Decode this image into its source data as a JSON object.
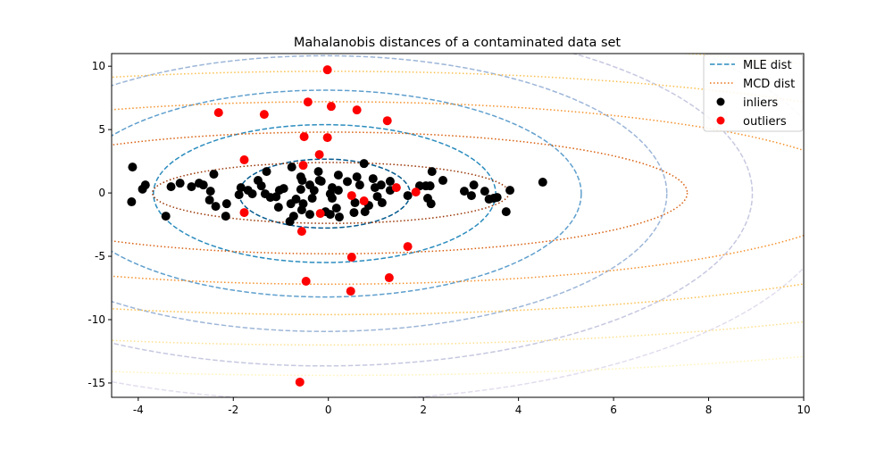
{
  "chart_data": {
    "type": "scatter",
    "title": "Mahalanobis distances of a contaminated data set",
    "xlabel": "",
    "ylabel": "",
    "xlim": [
      -4.56,
      10
    ],
    "ylim": [
      -16.13,
      11
    ],
    "xticks": [
      -4,
      -2,
      0,
      2,
      4,
      6,
      8,
      10
    ],
    "yticks": [
      -15,
      -10,
      -5,
      0,
      5,
      10
    ],
    "grid": false,
    "legend": {
      "placement": "top-right",
      "entries": [
        {
          "label": "MLE dist",
          "style": "dashed",
          "color": "#2b8cbe"
        },
        {
          "label": "MCD dist",
          "style": "dotted",
          "color": "#ec7014"
        },
        {
          "label": "inliers",
          "style": "marker",
          "color": "#000000"
        },
        {
          "label": "outliers",
          "style": "marker",
          "color": "#ff0000"
        }
      ]
    },
    "contours": [
      {
        "name": "MLE dist",
        "style": "dashed",
        "center": [
          -0.08,
          -0.05
        ],
        "semi_axes_per_level": [
          1.8,
          2.72
        ],
        "levels": [
          1,
          2,
          3,
          4,
          5,
          6
        ],
        "colors": [
          "#045a8d",
          "#2b8cbe",
          "#5f9fcd",
          "#9db6d8",
          "#c6c8e0",
          "#e2ddee"
        ]
      },
      {
        "name": "MCD dist",
        "style": "dotted",
        "center": [
          0.05,
          0.0
        ],
        "semi_axes_per_level": [
          3.75,
          2.4
        ],
        "levels": [
          1,
          2,
          3,
          4,
          5,
          6
        ],
        "colors": [
          "#993404",
          "#d95f0e",
          "#f5902a",
          "#fbbf4f",
          "#fde08f",
          "#fff2b8"
        ]
      }
    ],
    "series": [
      {
        "name": "inliers",
        "color": "#000000",
        "points": [
          [
            -4.12,
            2.04
          ],
          [
            -3.85,
            0.63
          ],
          [
            -3.91,
            0.3
          ],
          [
            -4.14,
            -0.7
          ],
          [
            -3.42,
            -1.83
          ],
          [
            -3.31,
            0.49
          ],
          [
            -3.12,
            0.77
          ],
          [
            -2.88,
            0.49
          ],
          [
            -2.72,
            0.77
          ],
          [
            -2.63,
            0.63
          ],
          [
            -2.48,
            0.14
          ],
          [
            -2.41,
            1.48
          ],
          [
            -2.5,
            -0.56
          ],
          [
            -2.37,
            -1.06
          ],
          [
            -2.14,
            -0.85
          ],
          [
            -2.16,
            -1.83
          ],
          [
            -1.84,
            0.42
          ],
          [
            -1.88,
            -0.14
          ],
          [
            -1.69,
            0.21
          ],
          [
            -1.6,
            -0.07
          ],
          [
            -1.48,
            0.99
          ],
          [
            -1.41,
            0.56
          ],
          [
            -1.3,
            1.69
          ],
          [
            -1.33,
            -0.07
          ],
          [
            -1.22,
            -0.35
          ],
          [
            -1.05,
            -1.13
          ],
          [
            -1.03,
            0.21
          ],
          [
            -0.94,
            0.35
          ],
          [
            -0.77,
            2.04
          ],
          [
            -0.73,
            -1.83
          ],
          [
            -0.79,
            -0.85
          ],
          [
            -0.81,
            -2.25
          ],
          [
            -0.58,
            1.27
          ],
          [
            -0.55,
            0.99
          ],
          [
            -0.58,
            0.28
          ],
          [
            -0.68,
            -0.49
          ],
          [
            -0.53,
            -0.85
          ],
          [
            -0.39,
            0.63
          ],
          [
            -0.34,
            -0.42
          ],
          [
            -0.56,
            -1.34
          ],
          [
            -0.39,
            -1.69
          ],
          [
            -0.21,
            1.69
          ],
          [
            -0.19,
            0.99
          ],
          [
            -0.15,
            0.92
          ],
          [
            0.04,
            -0.07
          ],
          [
            -0.06,
            -1.48
          ],
          [
            0.04,
            -1.69
          ],
          [
            0.21,
            1.41
          ],
          [
            0.21,
            0.21
          ],
          [
            0.08,
            0.42
          ],
          [
            0.08,
            -0.42
          ],
          [
            0.17,
            -1.2
          ],
          [
            0.23,
            -1.9
          ],
          [
            0.75,
            2.32
          ],
          [
            0.6,
            1.27
          ],
          [
            0.66,
            0.63
          ],
          [
            0.56,
            -0.77
          ],
          [
            0.54,
            -1.55
          ],
          [
            0.77,
            -1.48
          ],
          [
            0.85,
            -0.99
          ],
          [
            0.94,
            1.13
          ],
          [
            0.98,
            0.42
          ],
          [
            1.11,
            0.63
          ],
          [
            1.03,
            -0.28
          ],
          [
            1.13,
            -0.77
          ],
          [
            1.3,
            0.92
          ],
          [
            1.3,
            0.21
          ],
          [
            1.67,
            -0.21
          ],
          [
            1.92,
            0.56
          ],
          [
            2.05,
            0.56
          ],
          [
            2.14,
            0.56
          ],
          [
            2.18,
            1.69
          ],
          [
            2.09,
            -0.42
          ],
          [
            2.16,
            -0.85
          ],
          [
            2.41,
            0.99
          ],
          [
            2.86,
            0.14
          ],
          [
            3.01,
            -0.21
          ],
          [
            3.06,
            0.63
          ],
          [
            3.29,
            0.14
          ],
          [
            3.38,
            -0.49
          ],
          [
            3.48,
            -0.42
          ],
          [
            3.55,
            -0.35
          ],
          [
            3.82,
            0.21
          ],
          [
            3.74,
            -1.48
          ],
          [
            4.51,
            0.85
          ],
          [
            -0.3,
            0.2
          ],
          [
            0.4,
            0.9
          ],
          [
            -1.1,
            -0.3
          ]
        ]
      },
      {
        "name": "outliers",
        "color": "#ff0000",
        "points": [
          [
            -0.02,
            9.72
          ],
          [
            -2.31,
            6.34
          ],
          [
            -1.35,
            6.2
          ],
          [
            -0.43,
            7.18
          ],
          [
            0.06,
            6.83
          ],
          [
            0.6,
            6.55
          ],
          [
            1.24,
            5.7
          ],
          [
            -0.51,
            4.44
          ],
          [
            -0.02,
            4.37
          ],
          [
            -1.77,
            2.61
          ],
          [
            -0.19,
            3.03
          ],
          [
            -0.53,
            2.18
          ],
          [
            0.49,
            -0.21
          ],
          [
            1.43,
            0.42
          ],
          [
            1.84,
            0.07
          ],
          [
            0.75,
            -0.63
          ],
          [
            -1.77,
            -1.55
          ],
          [
            -0.17,
            -1.62
          ],
          [
            -0.56,
            -3.03
          ],
          [
            1.67,
            -4.23
          ],
          [
            0.49,
            -5.07
          ],
          [
            -0.47,
            -6.97
          ],
          [
            1.28,
            -6.69
          ],
          [
            0.47,
            -7.75
          ],
          [
            -0.6,
            -14.93
          ]
        ]
      }
    ]
  }
}
